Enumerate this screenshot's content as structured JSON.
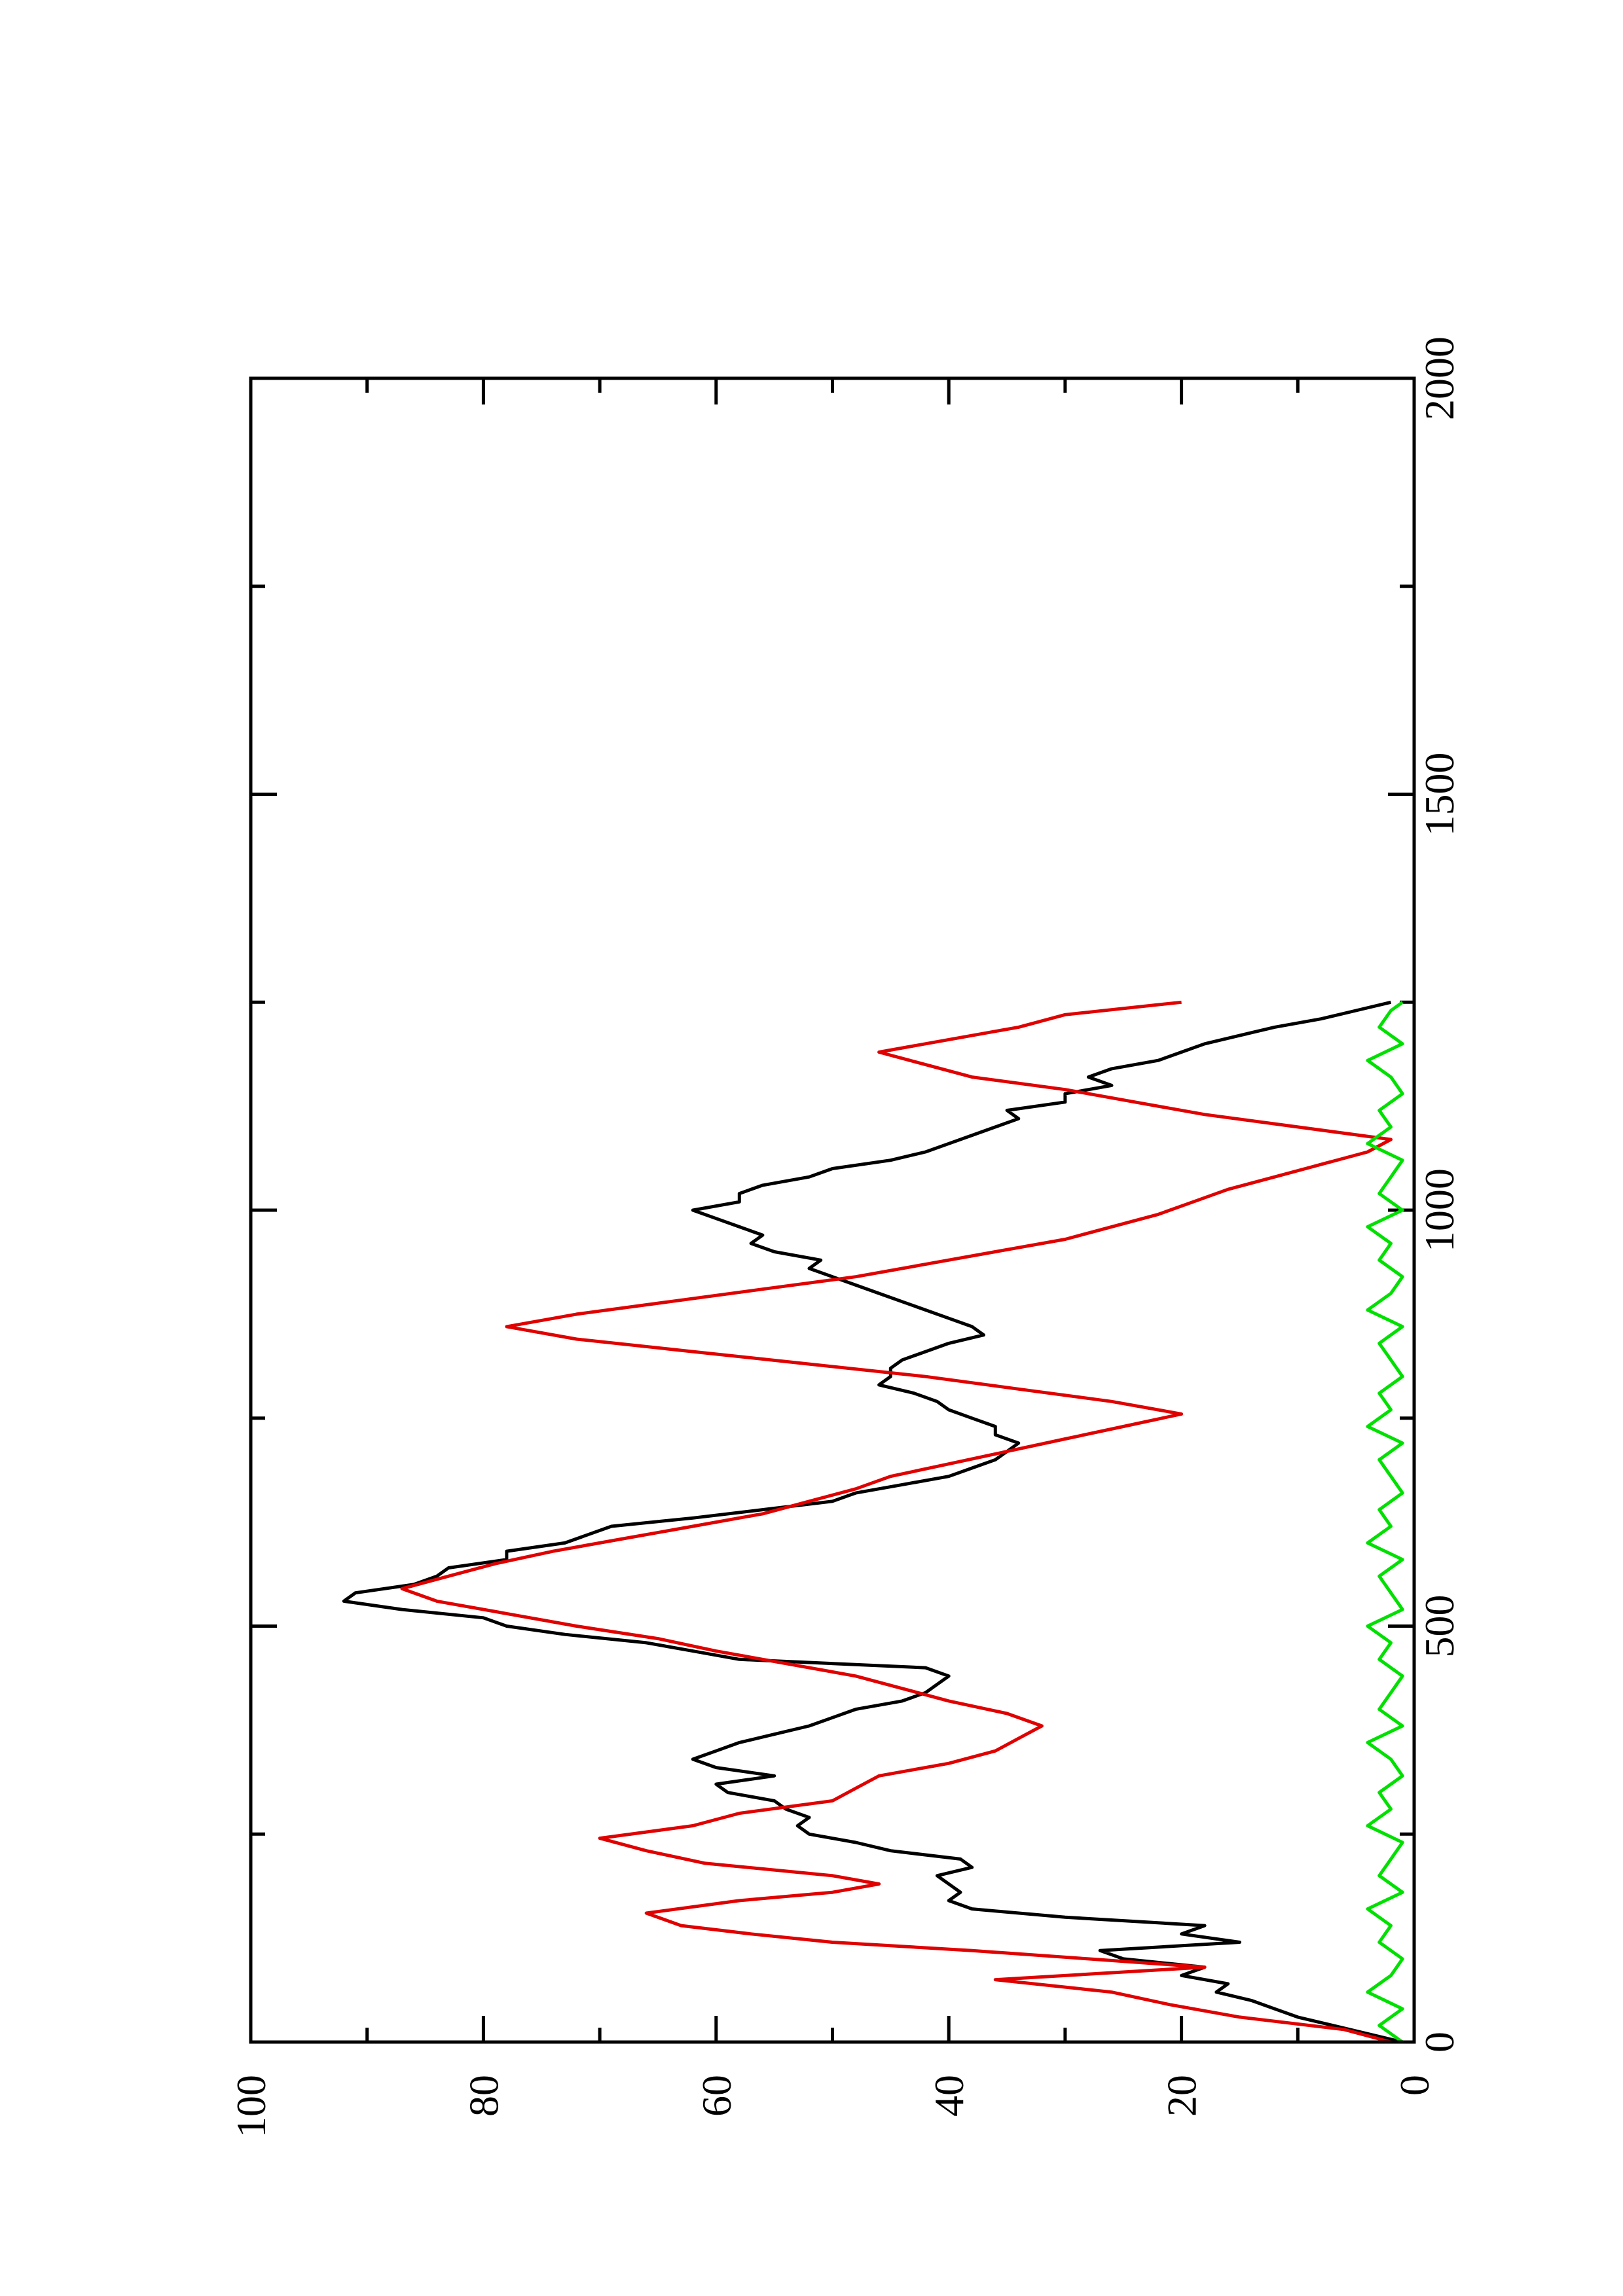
{
  "chart_data": {
    "type": "line",
    "orientation": "rotated 90 degrees counter-clockwise (x axis runs vertically, y axis horizontally)",
    "title": "",
    "xlabel": "",
    "ylabel": "",
    "xlim": [
      0,
      2000
    ],
    "ylim": [
      0,
      100
    ],
    "x_ticks": [
      "0",
      "500",
      "1000",
      "1500",
      "2000"
    ],
    "y_ticks": [
      "0",
      "20",
      "40",
      "60",
      "80",
      "100"
    ],
    "grid": false,
    "legend": "none",
    "series": [
      {
        "color": "#000000",
        "style": "noisy random walk",
        "x": [
          0,
          10,
          20,
          30,
          40,
          50,
          60,
          70,
          80,
          90,
          100,
          110,
          120,
          130,
          140,
          150,
          160,
          170,
          180,
          190,
          200,
          210,
          220,
          230,
          240,
          250,
          260,
          270,
          280,
          290,
          300,
          310,
          320,
          330,
          340,
          350,
          360,
          370,
          380,
          390,
          400,
          410,
          420,
          430,
          440,
          450,
          460,
          470,
          480,
          490,
          500,
          510,
          520,
          530,
          540,
          550,
          560,
          570,
          580,
          590,
          600,
          610,
          620,
          630,
          640,
          650,
          660,
          670,
          680,
          690,
          700,
          710,
          720,
          730,
          740,
          750,
          760,
          770,
          780,
          790,
          800,
          810,
          820,
          830,
          840,
          850,
          860,
          870,
          880,
          890,
          900,
          910,
          920,
          930,
          940,
          950,
          960,
          970,
          980,
          990,
          1000,
          1010,
          1020,
          1030,
          1040,
          1050,
          1060,
          1070,
          1080,
          1090,
          1100,
          1110,
          1120,
          1130,
          1140,
          1150,
          1160,
          1170,
          1180,
          1190,
          1200,
          1210,
          1220,
          1230,
          1240,
          1250
        ],
        "y": [
          1,
          4,
          7,
          10,
          12,
          14,
          17,
          16,
          20,
          18,
          25,
          27,
          15,
          20,
          18,
          30,
          38,
          40,
          39,
          40,
          41,
          38,
          39,
          45,
          48,
          52,
          53,
          52,
          54,
          55,
          59,
          60,
          55,
          60,
          62,
          60,
          58,
          55,
          52,
          50,
          48,
          44,
          42,
          41,
          40,
          42,
          58,
          62,
          66,
          73,
          78,
          80,
          87,
          92,
          91,
          86,
          84,
          83,
          78,
          78,
          73,
          71,
          69,
          62,
          56,
          50,
          48,
          44,
          40,
          38,
          36,
          35,
          34,
          36,
          36,
          38,
          40,
          41,
          43,
          46,
          45,
          45,
          44,
          42,
          40,
          37,
          38,
          40,
          42,
          44,
          46,
          48,
          50,
          52,
          51,
          55,
          57,
          56,
          58,
          60,
          62,
          58,
          58,
          56,
          52,
          50,
          45,
          42,
          40,
          38,
          36,
          34,
          35,
          30,
          30,
          26,
          28,
          26,
          22,
          20,
          18,
          15,
          12,
          8,
          5,
          2
        ]
      },
      {
        "color": "#e00000",
        "style": "stepped zigzag",
        "x": [
          0,
          15,
          30,
          45,
          60,
          75,
          90,
          100,
          110,
          120,
          130,
          140,
          155,
          170,
          180,
          190,
          200,
          215,
          230,
          245,
          260,
          275,
          290,
          305,
          320,
          335,
          350,
          365,
          380,
          395,
          410,
          425,
          440,
          455,
          470,
          485,
          500,
          515,
          530,
          545,
          560,
          575,
          590,
          605,
          620,
          635,
          650,
          665,
          680,
          695,
          710,
          725,
          740,
          755,
          770,
          785,
          800,
          815,
          830,
          845,
          860,
          875,
          890,
          905,
          920,
          935,
          950,
          965,
          980,
          995,
          1010,
          1025,
          1040,
          1055,
          1070,
          1085,
          1100,
          1115,
          1130,
          1145,
          1160,
          1175,
          1190,
          1205,
          1220,
          1235,
          1250
        ],
        "y": [
          2,
          6,
          15,
          21,
          26,
          36,
          18,
          28,
          38,
          50,
          57,
          63,
          66,
          58,
          50,
          46,
          50,
          61,
          66,
          70,
          62,
          58,
          50,
          48,
          46,
          40,
          36,
          34,
          32,
          35,
          40,
          44,
          48,
          54,
          60,
          65,
          72,
          78,
          84,
          87,
          83,
          79,
          74,
          68,
          62,
          56,
          52,
          48,
          45,
          40,
          35,
          30,
          25,
          20,
          26,
          34,
          42,
          52,
          62,
          72,
          78,
          72,
          64,
          56,
          48,
          42,
          36,
          30,
          26,
          22,
          19,
          16,
          12,
          8,
          4,
          2,
          10,
          18,
          24,
          30,
          38,
          42,
          46,
          40,
          34,
          30,
          20
        ]
      },
      {
        "color": "#00e000",
        "style": "noise near zero",
        "x": [
          0,
          20,
          40,
          60,
          80,
          100,
          120,
          140,
          160,
          180,
          200,
          220,
          240,
          260,
          280,
          300,
          320,
          340,
          360,
          380,
          400,
          420,
          440,
          460,
          480,
          500,
          520,
          540,
          560,
          580,
          600,
          620,
          640,
          660,
          680,
          700,
          720,
          740,
          760,
          780,
          800,
          820,
          840,
          860,
          880,
          900,
          920,
          940,
          960,
          980,
          1000,
          1020,
          1040,
          1060,
          1080,
          1100,
          1120,
          1140,
          1160,
          1180,
          1200,
          1220,
          1240,
          1250
        ],
        "y": [
          1,
          3,
          1,
          4,
          2,
          1,
          3,
          2,
          4,
          1,
          3,
          2,
          1,
          4,
          2,
          3,
          1,
          2,
          4,
          1,
          3,
          2,
          1,
          3,
          2,
          4,
          1,
          2,
          3,
          1,
          4,
          2,
          3,
          1,
          2,
          3,
          1,
          4,
          2,
          3,
          1,
          2,
          3,
          1,
          4,
          2,
          1,
          3,
          2,
          4,
          1,
          3,
          2,
          1,
          4,
          2,
          3,
          1,
          2,
          4,
          1,
          3,
          2,
          1
        ]
      }
    ]
  }
}
